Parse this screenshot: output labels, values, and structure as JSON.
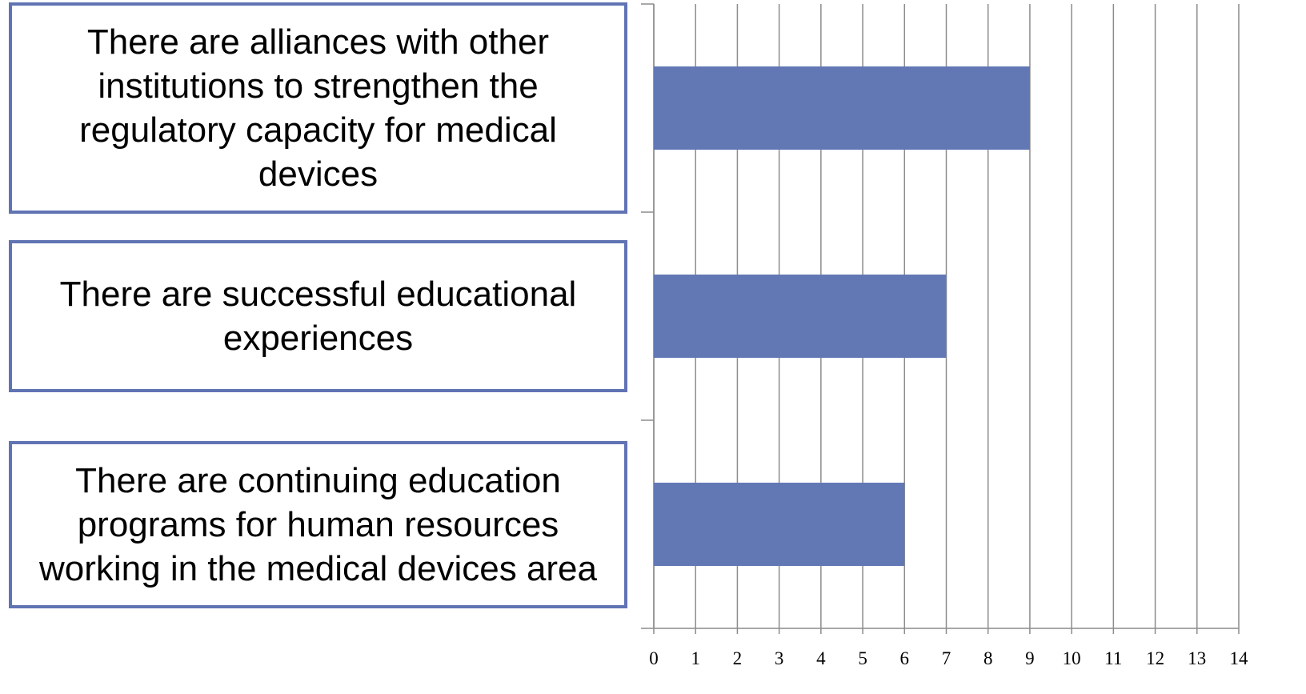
{
  "chart_data": {
    "type": "barh",
    "categories": [
      "There are alliances with other institutions to strengthen the regulatory capacity for medical devices",
      "There are successful educational experiences",
      "There are continuing education programs for human resources working in the medical devices area"
    ],
    "values": [
      9,
      7,
      6
    ],
    "color": "#6278b5",
    "xlim": [
      0,
      14
    ],
    "xticks": [
      0,
      1,
      2,
      3,
      4,
      5,
      6,
      7,
      8,
      9,
      10,
      11,
      12,
      13,
      14
    ],
    "grid": true
  }
}
